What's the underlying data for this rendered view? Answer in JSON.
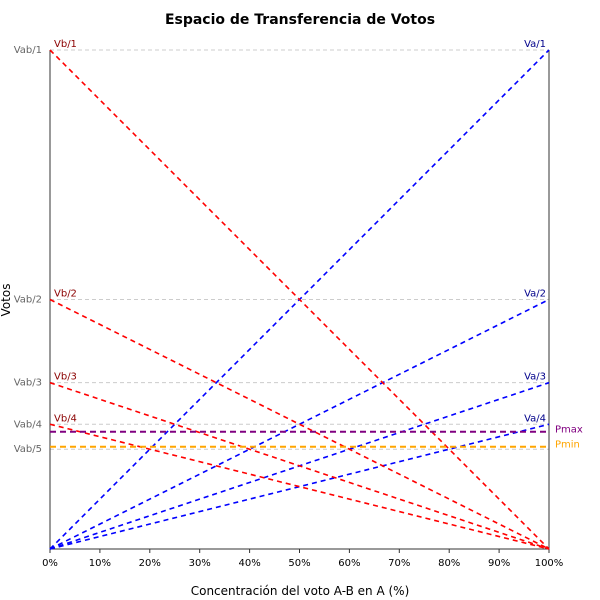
{
  "chart_data": {
    "type": "line",
    "title": "Espacio de Transferencia de Votos",
    "xlabel": "Concentración del voto A-B en A (%)",
    "ylabel": "Votos",
    "xlim": [
      0,
      100
    ],
    "ylim": [
      0,
      1
    ],
    "grid": "horizontal dashed at Vab/n levels",
    "x_ticks": [
      "0%",
      "10%",
      "20%",
      "30%",
      "40%",
      "50%",
      "60%",
      "70%",
      "80%",
      "90%",
      "100%"
    ],
    "y_ticks": [
      {
        "label": "Vab/1",
        "value": 1.0
      },
      {
        "label": "Vab/2",
        "value": 0.5
      },
      {
        "label": "Vab/3",
        "value": 0.3333
      },
      {
        "label": "Vab/4",
        "value": 0.25
      },
      {
        "label": "Vab/5",
        "value": 0.2
      }
    ],
    "series": [
      {
        "name": "Va/1",
        "color": "#0000ff",
        "x": [
          0,
          100
        ],
        "y": [
          0,
          1.0
        ]
      },
      {
        "name": "Va/2",
        "color": "#0000ff",
        "x": [
          0,
          100
        ],
        "y": [
          0,
          0.5
        ]
      },
      {
        "name": "Va/3",
        "color": "#0000ff",
        "x": [
          0,
          100
        ],
        "y": [
          0,
          0.3333
        ]
      },
      {
        "name": "Va/4",
        "color": "#0000ff",
        "x": [
          0,
          100
        ],
        "y": [
          0,
          0.25
        ]
      },
      {
        "name": "Vb/1",
        "color": "#ff0000",
        "x": [
          0,
          100
        ],
        "y": [
          1.0,
          0
        ]
      },
      {
        "name": "Vb/2",
        "color": "#ff0000",
        "x": [
          0,
          100
        ],
        "y": [
          0.5,
          0
        ]
      },
      {
        "name": "Vb/3",
        "color": "#ff0000",
        "x": [
          0,
          100
        ],
        "y": [
          0.3333,
          0
        ]
      },
      {
        "name": "Vb/4",
        "color": "#ff0000",
        "x": [
          0,
          100
        ],
        "y": [
          0.25,
          0
        ]
      }
    ],
    "reference_lines": [
      {
        "name": "Pmax",
        "color": "#800080",
        "y": 0.235
      },
      {
        "name": "Pmin",
        "color": "#ffa500",
        "y": 0.205
      }
    ],
    "grid_color": "#cccccc",
    "axis_color": "#333333"
  }
}
